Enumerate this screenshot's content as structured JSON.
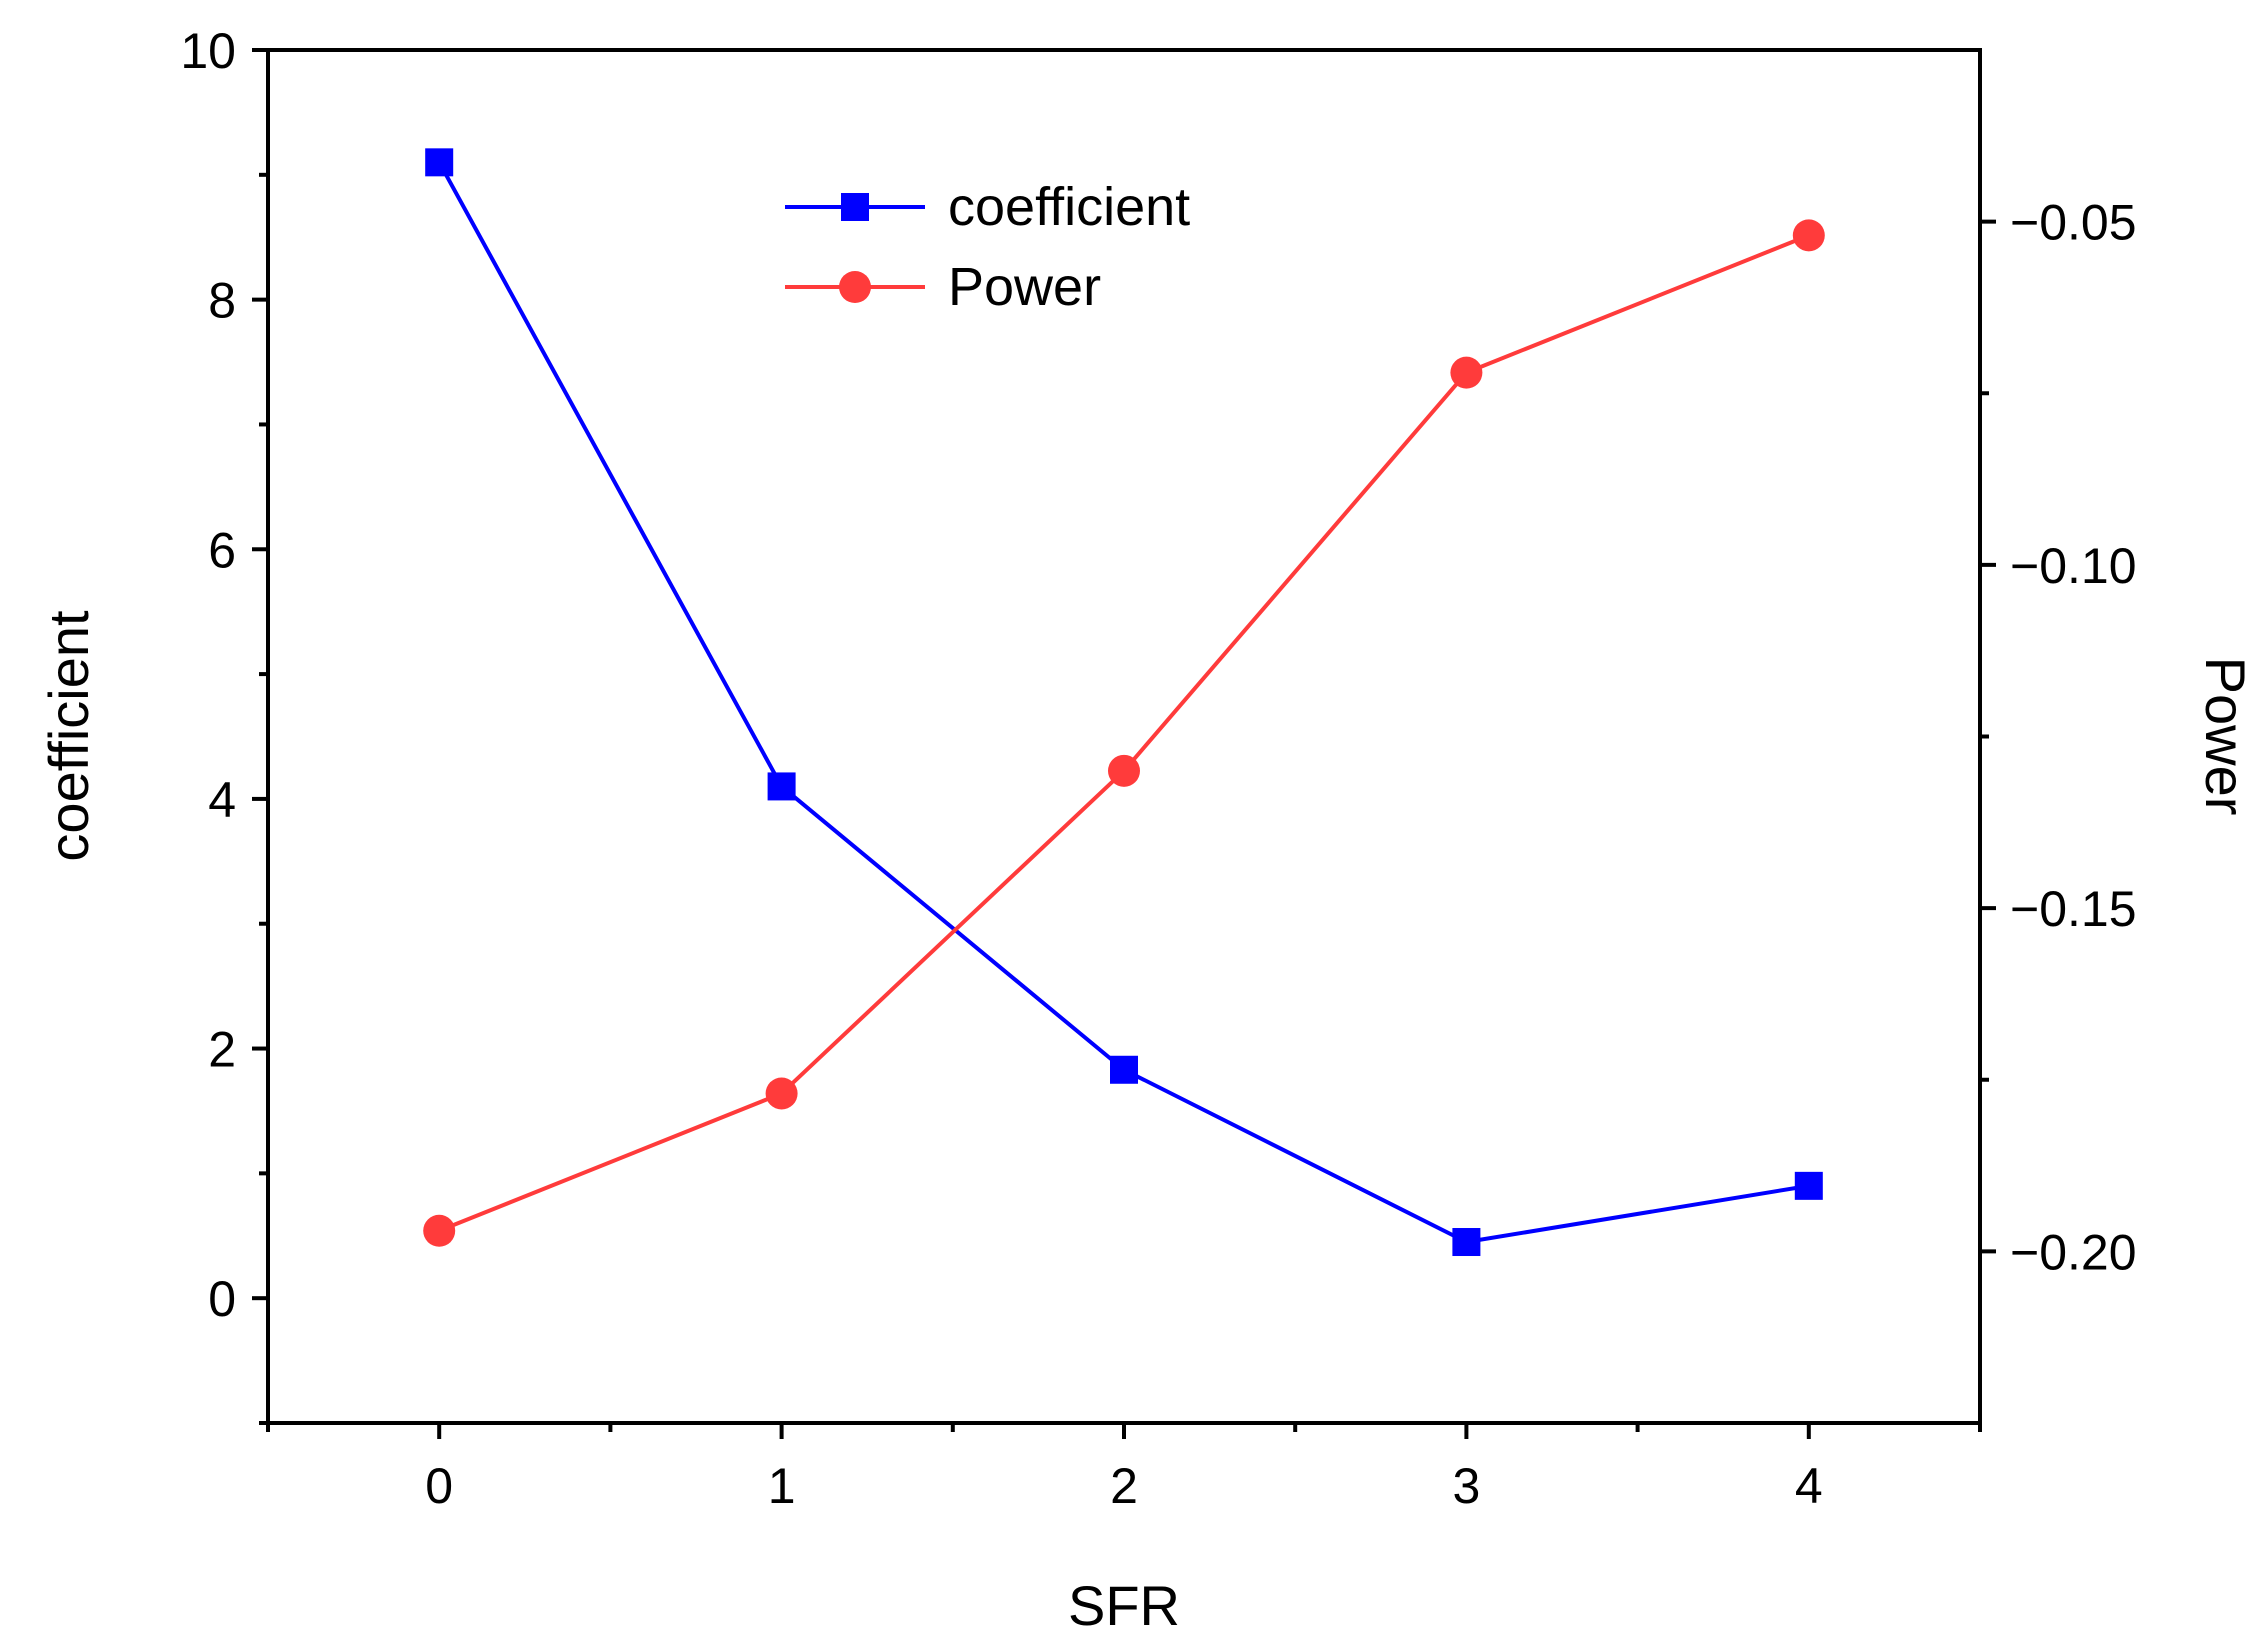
{
  "chart_data": {
    "type": "line",
    "title": "",
    "xlabel": "SFR",
    "ylabel_left": "coefficient",
    "ylabel_right": "Power",
    "x": [
      0,
      1,
      2,
      3,
      4
    ],
    "xlim": [
      -0.5,
      4.5
    ],
    "xticks": [
      0,
      1,
      2,
      3,
      4
    ],
    "xtick_labels": [
      "0",
      "1",
      "2",
      "3",
      "4"
    ],
    "ylim_left": [
      -1,
      10
    ],
    "yticks_left": [
      0,
      2,
      4,
      6,
      8,
      10
    ],
    "ytick_labels_left": [
      "0",
      "2",
      "4",
      "6",
      "8",
      "10"
    ],
    "ylim_right": [
      -0.225,
      -0.025
    ],
    "yticks_right": [
      -0.2,
      -0.15,
      -0.1,
      -0.05
    ],
    "ytick_labels_right": [
      "−0.20",
      "−0.15",
      "−0.10",
      "−0.05"
    ],
    "grid": false,
    "legend_position": "top-center",
    "series": [
      {
        "name": "coefficient",
        "axis": "left",
        "color": "#0000ff",
        "marker": "square",
        "values": [
          9.1,
          4.1,
          1.83,
          0.45,
          0.9
        ]
      },
      {
        "name": "Power",
        "axis": "right",
        "color": "#ff3b3b",
        "marker": "circle",
        "values": [
          -0.197,
          -0.177,
          -0.13,
          -0.072,
          -0.052
        ]
      }
    ]
  }
}
